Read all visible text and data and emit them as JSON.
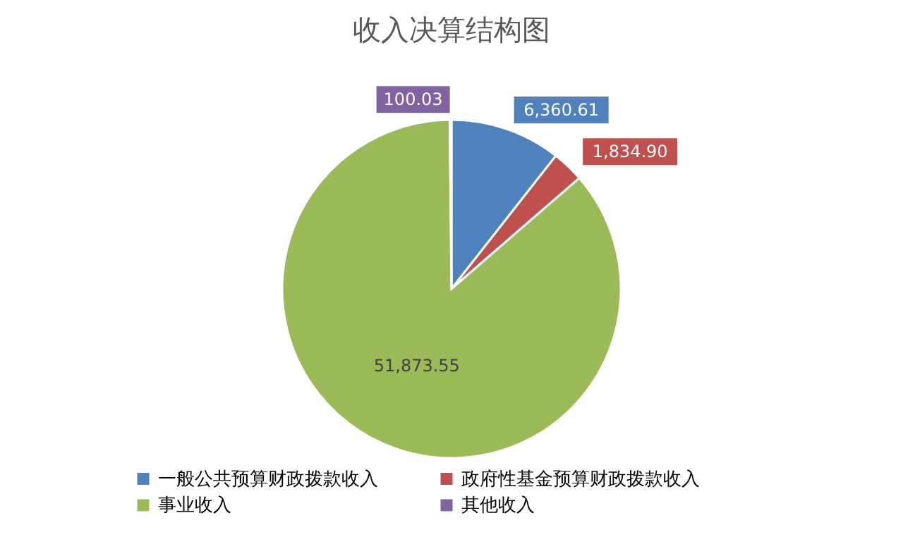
{
  "chart_data": {
    "type": "pie",
    "title": "收入决算结构图",
    "categories": [
      "一般公共预算财政拨款收入",
      "政府性基金预算财政拨款收入",
      "事业收入",
      "其他收入"
    ],
    "values": [
      6360.61,
      1834.9,
      51873.55,
      100.03
    ],
    "value_labels": [
      "6,360.61",
      "1,834.90",
      "51,873.55",
      "100.03"
    ],
    "colors": [
      "#4f81bd",
      "#c0504d",
      "#9bbb59",
      "#8064a2"
    ],
    "legend": "bottom"
  }
}
